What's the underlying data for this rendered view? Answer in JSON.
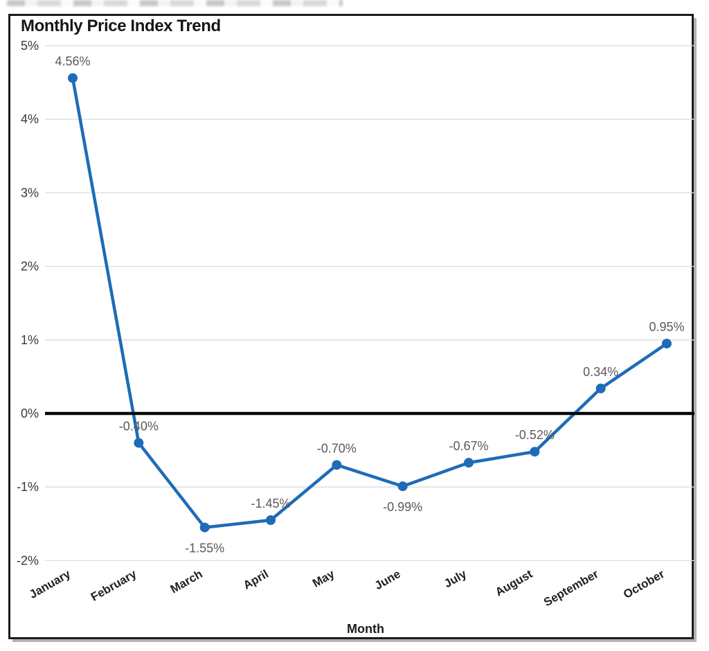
{
  "chart_data": {
    "type": "line",
    "title": "Monthly Price Index Trend",
    "xlabel": "Month",
    "x": [
      "January",
      "February",
      "March",
      "April",
      "May",
      "June",
      "July",
      "August",
      "September",
      "October"
    ],
    "values": [
      4.56,
      -0.4,
      -1.55,
      -1.45,
      -0.7,
      -0.99,
      -0.67,
      -0.52,
      0.34,
      0.95
    ],
    "point_labels": [
      "4.56%",
      "-0.40%",
      "-1.55%",
      "-1.45%",
      "-0.70%",
      "-0.99%",
      "-0.67%",
      "-0.52%",
      "0.34%",
      "0.95%"
    ],
    "label_side": [
      "above",
      "above",
      "below",
      "above",
      "above",
      "below",
      "above",
      "above",
      "above",
      "above"
    ],
    "y_tick_labels": [
      "5%",
      "4%",
      "3%",
      "2%",
      "1%",
      "0%",
      "-1%",
      "-2%"
    ],
    "y_tick_values": [
      5,
      4,
      3,
      2,
      1,
      0,
      -1,
      -2
    ],
    "ylim": [
      -2,
      5
    ],
    "grid": true,
    "legend": "none",
    "colors": {
      "line": "#1E6BB8",
      "marker": "#1E6BB8",
      "zero_line": "#060606",
      "gridline": "#DCDCDC",
      "point_label": "#595959",
      "axis_tick": "#383838",
      "x_tick": "#1F1F1F",
      "frame_border": "#1B1B1B"
    }
  }
}
